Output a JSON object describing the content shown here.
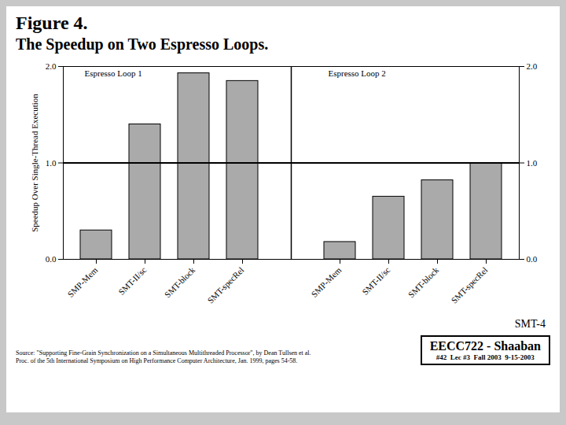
{
  "chart_data": {
    "type": "bar",
    "title": "Figure 4.",
    "subtitle": "The Speedup on Two Espresso Loops.",
    "ylabel": "Speedup Over Single-Thread Execution",
    "categories": [
      "SMP-Mem",
      "SMT-II/sc",
      "SMT-block",
      "SMT-specRel"
    ],
    "series": [
      {
        "name": "Espresso Loop 1",
        "values": [
          0.3,
          1.4,
          1.93,
          1.85
        ]
      },
      {
        "name": "Espresso Loop 2",
        "values": [
          0.18,
          0.65,
          0.82,
          1.0
        ]
      }
    ],
    "color": "#aaaaaa",
    "ylim": [
      0,
      2
    ],
    "yticks": [
      0,
      1,
      2
    ],
    "y2lim": [
      0,
      2
    ],
    "y2ticks": [
      0,
      1,
      2
    ],
    "reference_line": 1.0,
    "grid": false,
    "annotations": [
      "SMT-4",
      "EECC722 - Shaaban",
      "#42  Lec #3  Fall 2003  9-15-2003",
      "Source: \"Supporting Fine-Grain Synchronization on a Simultaneous Multithreaded Processor\", by Dean Tullsen et al.\nProc. of the 5th International Symposium on High Performance Computer Architecture, Jan. 1999, pages 54-58."
    ]
  }
}
